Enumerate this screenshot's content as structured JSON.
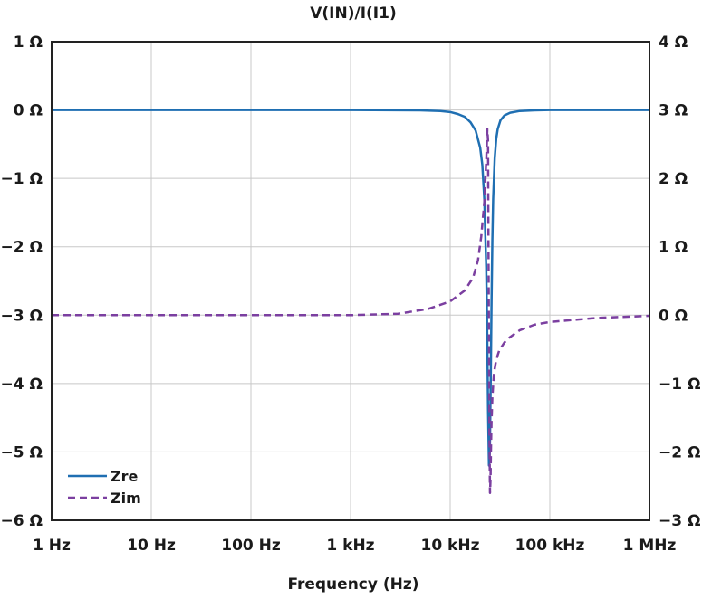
{
  "chart_data": {
    "type": "line",
    "title": "V(IN)/I(I1)",
    "xlabel": "Frequency (Hz)",
    "x_scale": "log",
    "xlim": [
      1,
      1000000
    ],
    "x_ticks": [
      {
        "value": 1,
        "label": "1 Hz"
      },
      {
        "value": 10,
        "label": "10 Hz"
      },
      {
        "value": 100,
        "label": "100 Hz"
      },
      {
        "value": 1000,
        "label": "1 kHz"
      },
      {
        "value": 10000,
        "label": "10 kHz"
      },
      {
        "value": 100000,
        "label": "100 kHz"
      },
      {
        "value": 1000000,
        "label": "1 MHz"
      }
    ],
    "y_left": {
      "ylim": [
        -6,
        1
      ],
      "ticks": [
        {
          "value": 1,
          "label": "1 Ω"
        },
        {
          "value": 0,
          "label": "0 Ω"
        },
        {
          "value": -1,
          "label": "−1 Ω"
        },
        {
          "value": -2,
          "label": "−2 Ω"
        },
        {
          "value": -3,
          "label": "−3 Ω"
        },
        {
          "value": -4,
          "label": "−4 Ω"
        },
        {
          "value": -5,
          "label": "−5 Ω"
        },
        {
          "value": -6,
          "label": "−6 Ω"
        }
      ]
    },
    "y_right": {
      "ylim": [
        -3,
        4
      ],
      "ticks": [
        {
          "value": 4,
          "label": "4 Ω"
        },
        {
          "value": 3,
          "label": "3 Ω"
        },
        {
          "value": 2,
          "label": "2 Ω"
        },
        {
          "value": 1,
          "label": "1 Ω"
        },
        {
          "value": 0,
          "label": "0 Ω"
        },
        {
          "value": -1,
          "label": "−1 Ω"
        },
        {
          "value": -2,
          "label": "−2 Ω"
        },
        {
          "value": -3,
          "label": "−3 Ω"
        }
      ]
    },
    "grid": true,
    "legend_position": "bottom-left",
    "series": [
      {
        "name": "Zre",
        "axis": "left",
        "color": "#1f6fb2",
        "line_style": "solid",
        "x": [
          1,
          100,
          1000,
          5000,
          8000,
          10000,
          12000,
          14000,
          16000,
          18000,
          20000,
          21000,
          22000,
          23000,
          23500,
          24000,
          24500,
          25000,
          25500,
          26000,
          26500,
          27000,
          28000,
          29000,
          30000,
          32000,
          35000,
          40000,
          50000,
          70000,
          100000,
          1000000
        ],
        "y": [
          0,
          0,
          0,
          -0.005,
          -0.015,
          -0.03,
          -0.06,
          -0.1,
          -0.18,
          -0.3,
          -0.55,
          -0.8,
          -1.3,
          -2.3,
          -3.2,
          -4.4,
          -5.2,
          -5.0,
          -4.0,
          -2.8,
          -1.9,
          -1.3,
          -0.7,
          -0.42,
          -0.28,
          -0.15,
          -0.08,
          -0.04,
          -0.015,
          -0.005,
          0,
          0
        ]
      },
      {
        "name": "Zim",
        "axis": "right",
        "color": "#7b3fa0",
        "line_style": "dashed",
        "x": [
          1,
          100,
          1000,
          3000,
          6000,
          10000,
          14000,
          17000,
          19000,
          20500,
          22000,
          23000,
          23600,
          24000,
          24200,
          24500,
          24800,
          25100,
          25400,
          25700,
          26000,
          26500,
          27500,
          29000,
          31000,
          35000,
          40000,
          50000,
          70000,
          100000,
          300000,
          1000000
        ],
        "y": [
          0,
          0,
          0,
          0.02,
          0.09,
          0.2,
          0.36,
          0.55,
          0.8,
          1.15,
          1.65,
          2.25,
          2.72,
          2.55,
          1.2,
          -0.3,
          -1.8,
          -2.6,
          -2.4,
          -1.9,
          -1.55,
          -1.2,
          -0.85,
          -0.65,
          -0.52,
          -0.4,
          -0.32,
          -0.22,
          -0.14,
          -0.1,
          -0.04,
          -0.01
        ]
      }
    ]
  }
}
